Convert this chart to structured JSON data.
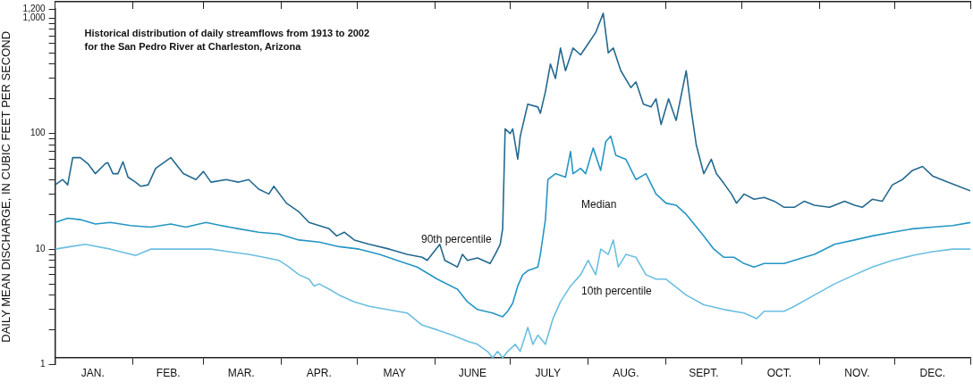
{
  "chart_data": {
    "type": "line",
    "title": "Historical distribution of daily streamflows from 1913 to 2002\nfor the San Pedro River at Charleston, Arizona",
    "ylabel": "DAILY MEAN DISCHARGE, IN CUBIC FEET PER SECOND",
    "log": "y",
    "grid": false,
    "legend": false,
    "marker": "none",
    "line_style": "solid",
    "xlim": [
      "--01-01",
      "--12-31"
    ],
    "xticks": [
      {
        "value": "--01-01",
        "label": null
      },
      {
        "value": "--01-16",
        "label": "JAN."
      },
      {
        "value": "--02-01",
        "label": null
      },
      {
        "value": "--02-15",
        "label": "FEB."
      },
      {
        "value": "--03-01",
        "label": null
      },
      {
        "value": "--03-16",
        "label": "MAR."
      },
      {
        "value": "--04-01",
        "label": null
      },
      {
        "value": "--04-16",
        "label": "APR."
      },
      {
        "value": "--05-01",
        "label": null
      },
      {
        "value": "--05-16",
        "label": "MAY"
      },
      {
        "value": "--06-01",
        "label": null
      },
      {
        "value": "--06-16",
        "label": "JUNE"
      },
      {
        "value": "--07-01",
        "label": null
      },
      {
        "value": "--07-16",
        "label": "JULY"
      },
      {
        "value": "--08-01",
        "label": null
      },
      {
        "value": "--08-16",
        "label": "AUG."
      },
      {
        "value": "--09-01",
        "label": null
      },
      {
        "value": "--09-16",
        "label": "SEPT."
      },
      {
        "value": "--10-01",
        "label": null
      },
      {
        "value": "--10-16",
        "label": "OCT."
      },
      {
        "value": "--11-01",
        "label": null
      },
      {
        "value": "--11-16",
        "label": "NOV."
      },
      {
        "value": "--12-01",
        "label": null
      },
      {
        "value": "--12-16",
        "label": "DEC."
      },
      {
        "value": "--12-31",
        "label": null
      }
    ],
    "ylim": [
      1,
      1200
    ],
    "yticks": [
      1,
      {
        "value": 2,
        "label": null
      },
      {
        "value": 3,
        "label": null
      },
      {
        "value": 4,
        "label": null
      },
      {
        "value": 5,
        "label": null
      },
      {
        "value": 6,
        "label": null
      },
      {
        "value": 7,
        "label": null
      },
      {
        "value": 8,
        "label": null
      },
      {
        "value": 9,
        "label": null
      },
      10,
      {
        "value": 20,
        "label": null
      },
      {
        "value": 30,
        "label": null
      },
      {
        "value": 40,
        "label": null
      },
      {
        "value": 50,
        "label": null
      },
      {
        "value": 60,
        "label": null
      },
      {
        "value": 70,
        "label": null
      },
      {
        "value": 80,
        "label": null
      },
      {
        "value": 90,
        "label": null
      },
      100,
      {
        "value": 200,
        "label": null
      },
      {
        "value": 300,
        "label": null
      },
      {
        "value": 400,
        "label": null
      },
      {
        "value": 500,
        "label": null
      },
      {
        "value": 600,
        "label": null
      },
      {
        "value": 700,
        "label": null
      },
      {
        "value": 800,
        "label": null
      },
      {
        "value": 900,
        "label": null
      },
      {
        "value": 1000,
        "label": "1,000"
      },
      {
        "value": 1200,
        "label": "1,200"
      }
    ],
    "series": [
      {
        "name": "90th percentile",
        "color": "#23698f",
        "x": [
          "--01-01",
          "--01-04",
          "--01-06",
          "--01-08",
          "--01-11",
          "--01-14",
          "--01-17",
          "--01-21",
          "--01-22",
          "--01-24",
          "--01-26",
          "--01-28",
          "--01-30",
          "--02-02",
          "--02-04",
          "--02-07",
          "--02-10",
          "--02-16",
          "--02-21",
          "--02-26",
          "--03-01",
          "--03-04",
          "--03-10",
          "--03-15",
          "--03-19",
          "--03-23",
          "--03-27",
          "--03-29",
          "--04-03",
          "--04-08",
          "--04-12",
          "--04-16",
          "--04-20",
          "--04-23",
          "--04-26",
          "--04-30",
          "--05-06",
          "--05-14",
          "--05-21",
          "--05-27",
          "--05-29",
          "--06-03",
          "--06-05",
          "--06-10",
          "--06-12",
          "--06-14",
          "--06-18",
          "--06-23",
          "--06-25",
          "--06-27",
          "--06-28",
          "--06-29",
          "--07-01",
          "--07-02",
          "--07-04",
          "--07-05",
          "--07-08",
          "--07-12",
          "--07-13",
          "--07-15",
          "--07-17",
          "--07-19",
          "--07-21",
          "--07-23",
          "--07-26",
          "--07-29",
          "--08-01",
          "--08-04",
          "--08-07",
          "--08-09",
          "--08-11",
          "--08-14",
          "--08-18",
          "--08-20",
          "--08-23",
          "--08-26",
          "--08-28",
          "--08-30",
          "--09-02",
          "--09-05",
          "--09-09",
          "--09-11",
          "--09-13",
          "--09-16",
          "--09-19",
          "--09-21",
          "--09-24",
          "--09-27",
          "--09-29",
          "--10-02",
          "--10-06",
          "--10-10",
          "--10-14",
          "--10-18",
          "--10-22",
          "--10-26",
          "--10-30",
          "--11-05",
          "--11-11",
          "--11-15",
          "--11-18",
          "--11-22",
          "--11-26",
          "--11-30",
          "--12-04",
          "--12-08",
          "--12-12",
          "--12-16",
          "--12-22",
          "--12-31"
        ],
        "values": [
          36,
          40,
          36,
          62,
          62,
          55,
          45,
          55,
          56,
          45,
          45,
          57,
          42,
          38,
          35,
          36,
          50,
          62,
          45,
          40,
          47,
          38,
          40,
          38,
          40,
          33,
          30,
          35,
          25,
          21,
          17,
          16,
          15,
          13,
          14,
          12,
          11,
          10,
          9,
          8.5,
          8,
          11,
          8,
          7,
          9,
          8,
          8.4,
          7.5,
          9,
          11,
          15,
          110,
          100,
          110,
          60,
          95,
          180,
          170,
          150,
          230,
          400,
          300,
          550,
          350,
          550,
          480,
          600,
          750,
          1100,
          500,
          550,
          350,
          250,
          280,
          180,
          170,
          200,
          120,
          200,
          130,
          350,
          160,
          80,
          45,
          60,
          45,
          37,
          30,
          25,
          30,
          27,
          28,
          26,
          23,
          23,
          26,
          24,
          23,
          26,
          24,
          23,
          27,
          26,
          36,
          40,
          48,
          52,
          43,
          38,
          32
        ]
      },
      {
        "name": "Median",
        "color": "#2596c4",
        "x": [
          "--01-01",
          "--01-06",
          "--01-11",
          "--01-17",
          "--01-23",
          "--01-31",
          "--02-08",
          "--02-16",
          "--02-22",
          "--03-02",
          "--03-08",
          "--03-15",
          "--03-23",
          "--03-31",
          "--04-08",
          "--04-16",
          "--04-24",
          "--05-02",
          "--05-10",
          "--05-17",
          "--05-25",
          "--06-02",
          "--06-10",
          "--06-14",
          "--06-18",
          "--06-24",
          "--06-28",
          "--06-30",
          "--07-02",
          "--07-04",
          "--07-06",
          "--07-08",
          "--07-12",
          "--07-13",
          "--07-15",
          "--07-16",
          "--07-19",
          "--07-23",
          "--07-25",
          "--07-26",
          "--07-29",
          "--07-31",
          "--08-03",
          "--08-06",
          "--08-08",
          "--08-10",
          "--08-12",
          "--08-16",
          "--08-20",
          "--08-24",
          "--08-28",
          "--09-01",
          "--09-05",
          "--09-09",
          "--09-16",
          "--09-20",
          "--09-24",
          "--09-28",
          "--10-02",
          "--10-06",
          "--10-10",
          "--10-18",
          "--10-26",
          "--10-30",
          "--11-07",
          "--11-15",
          "--11-22",
          "--11-30",
          "--12-08",
          "--12-16",
          "--12-24",
          "--12-31"
        ],
        "values": [
          17,
          18.5,
          18,
          16.5,
          17,
          16,
          15.5,
          16.5,
          15.5,
          17,
          16,
          15,
          14,
          13.5,
          12,
          11.5,
          10.5,
          10,
          9,
          8,
          7,
          5.5,
          4.5,
          3.5,
          3,
          2.8,
          2.6,
          2.9,
          3.4,
          4.8,
          6,
          6.5,
          7,
          9,
          18,
          40,
          45,
          42,
          70,
          45,
          50,
          45,
          75,
          48,
          85,
          95,
          65,
          60,
          40,
          45,
          30,
          25,
          24,
          20,
          13,
          10,
          8.5,
          8.5,
          7.5,
          7,
          7.5,
          7.5,
          8.5,
          9,
          11,
          12,
          13,
          14,
          15,
          15.5,
          16,
          17
        ]
      },
      {
        "name": "10th percentile",
        "color": "#6bbfe0",
        "x": [
          "--01-01",
          "--01-07",
          "--01-13",
          "--01-23",
          "--01-27",
          "--02-02",
          "--02-08",
          "--02-20",
          "--03-04",
          "--03-11",
          "--03-19",
          "--03-25",
          "--03-31",
          "--04-04",
          "--04-08",
          "--04-12",
          "--04-14",
          "--04-16",
          "--04-20",
          "--04-24",
          "--04-30",
          "--05-06",
          "--05-13",
          "--05-21",
          "--05-27",
          "--06-02",
          "--06-08",
          "--06-14",
          "--06-18",
          "--06-22",
          "--06-24",
          "--06-26",
          "--06-28",
          "--06-30",
          "--07-03",
          "--07-05",
          "--07-08",
          "--07-10",
          "--07-12",
          "--07-15",
          "--07-18",
          "--07-21",
          "--07-25",
          "--07-29",
          "--08-01",
          "--08-04",
          "--08-06",
          "--08-09",
          "--08-11",
          "--08-13",
          "--08-16",
          "--08-20",
          "--08-24",
          "--08-28",
          "--09-01",
          "--09-09",
          "--09-16",
          "--09-24",
          "--10-02",
          "--10-07",
          "--10-10",
          "--10-18",
          "--10-22",
          "--10-30",
          "--11-07",
          "--11-15",
          "--11-22",
          "--11-30",
          "--12-08",
          "--12-16",
          "--12-24",
          "--12-31"
        ],
        "values": [
          10,
          10.5,
          11,
          10,
          9.5,
          8.8,
          10,
          10,
          10,
          9.5,
          9,
          8.5,
          8,
          7,
          6,
          5.5,
          4.8,
          5,
          4.5,
          4,
          3.5,
          3.2,
          3,
          2.8,
          2.2,
          2,
          1.8,
          1.6,
          1.5,
          1.3,
          1.15,
          1.3,
          1.15,
          1.3,
          1.5,
          1.3,
          2.1,
          1.5,
          1.8,
          1.5,
          2.5,
          3.5,
          4.8,
          6,
          8,
          6,
          10,
          9,
          12,
          7,
          9,
          8.5,
          6,
          5.5,
          5.5,
          4,
          3.3,
          3,
          2.8,
          2.5,
          2.9,
          2.9,
          3.2,
          4,
          5,
          6,
          7,
          8,
          8.8,
          9.5,
          10,
          10
        ]
      }
    ]
  }
}
